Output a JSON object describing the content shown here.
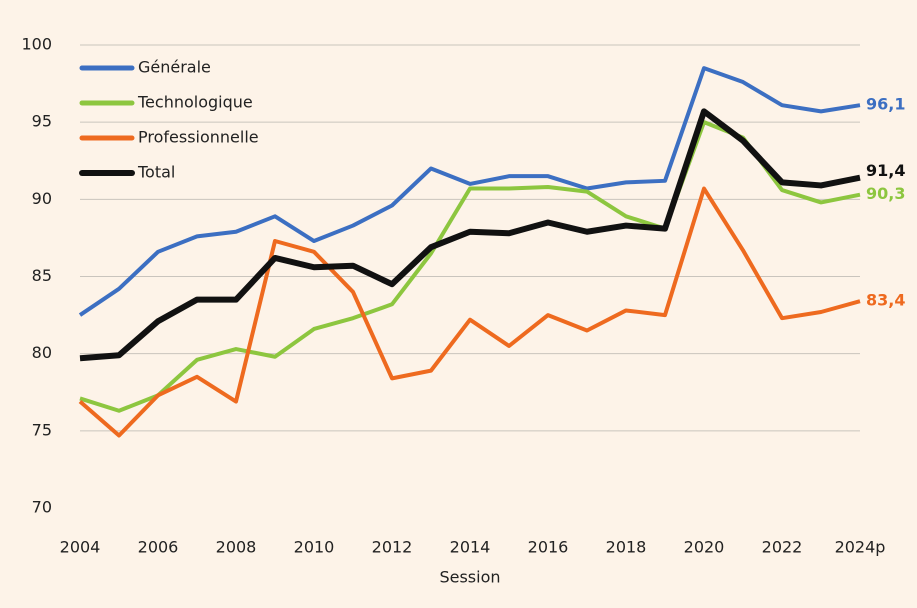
{
  "chart_data": {
    "type": "line",
    "x": [
      2004,
      2005,
      2006,
      2007,
      2008,
      2009,
      2010,
      2011,
      2012,
      2013,
      2014,
      2015,
      2016,
      2017,
      2018,
      2019,
      2020,
      2021,
      2022,
      2023,
      2024
    ],
    "xlabel": "Session",
    "xlim": [
      2004,
      2024
    ],
    "xticks": [
      2004,
      2006,
      2008,
      2010,
      2012,
      2014,
      2016,
      2018,
      2020,
      2022,
      {
        "value": 2024,
        "label": "2024p"
      }
    ],
    "ylim": [
      70,
      100
    ],
    "yticks": [
      70,
      75,
      80,
      85,
      90,
      95,
      100
    ],
    "grid": true,
    "legend": "top-left",
    "series": [
      {
        "name": "Générale",
        "color": "#3c6fc2",
        "values": [
          82.5,
          84.2,
          86.6,
          87.6,
          87.9,
          88.9,
          87.3,
          88.3,
          89.6,
          92.0,
          91.0,
          91.5,
          91.5,
          90.7,
          91.1,
          91.2,
          98.5,
          97.6,
          96.1,
          95.7,
          96.1
        ],
        "value_labels": [
          null,
          null,
          null,
          null,
          null,
          null,
          null,
          null,
          null,
          null,
          null,
          null,
          null,
          null,
          null,
          null,
          null,
          null,
          null,
          null,
          "96,1"
        ]
      },
      {
        "name": "Technologique",
        "color": "#8dc63f",
        "values": [
          77.1,
          76.3,
          77.3,
          79.6,
          80.3,
          79.8,
          81.6,
          82.3,
          83.2,
          86.5,
          90.7,
          90.7,
          90.8,
          90.5,
          88.9,
          88.1,
          95.0,
          94.0,
          90.6,
          89.8,
          90.3
        ],
        "value_labels": [
          null,
          null,
          null,
          null,
          null,
          null,
          null,
          null,
          null,
          null,
          null,
          null,
          null,
          null,
          null,
          null,
          null,
          null,
          null,
          null,
          "90,3"
        ]
      },
      {
        "name": "Professionnelle",
        "color": "#ee6a1f",
        "values": [
          76.9,
          74.7,
          77.3,
          78.5,
          76.9,
          87.3,
          86.6,
          84.0,
          78.4,
          78.9,
          82.2,
          80.5,
          82.5,
          81.5,
          82.8,
          82.5,
          90.7,
          86.7,
          82.3,
          82.7,
          83.4
        ],
        "value_labels": [
          null,
          null,
          null,
          null,
          null,
          null,
          null,
          null,
          null,
          null,
          null,
          null,
          null,
          null,
          null,
          null,
          null,
          null,
          null,
          null,
          "83,4"
        ]
      },
      {
        "name": "Total",
        "color": "#111111",
        "values": [
          79.7,
          79.9,
          82.1,
          83.5,
          83.5,
          86.2,
          85.6,
          85.7,
          84.5,
          86.9,
          87.9,
          87.8,
          88.5,
          87.9,
          88.3,
          88.1,
          95.7,
          93.8,
          91.1,
          90.9,
          91.4
        ],
        "value_labels": [
          null,
          null,
          null,
          null,
          null,
          null,
          null,
          null,
          null,
          null,
          null,
          null,
          null,
          null,
          null,
          null,
          null,
          null,
          null,
          null,
          "91,4"
        ]
      }
    ]
  }
}
